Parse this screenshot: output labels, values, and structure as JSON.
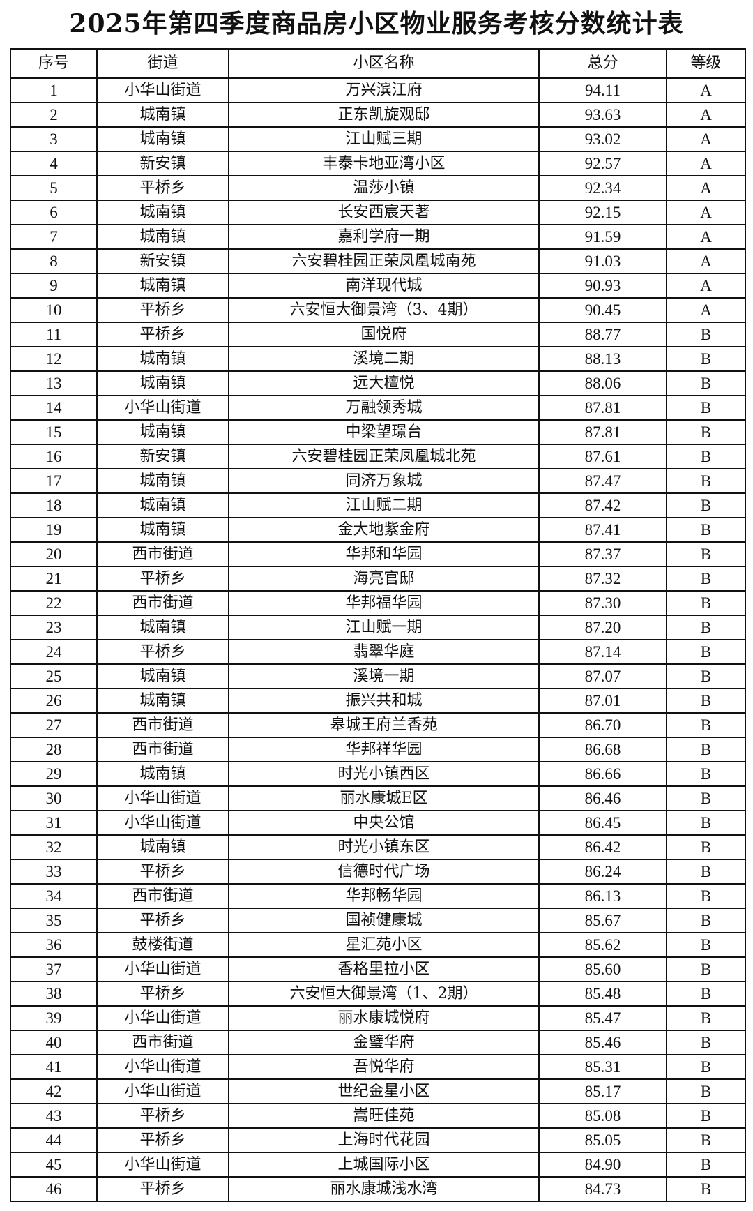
{
  "title": "2025年第四季度商品房小区物业服务考核分数统计表",
  "headers": [
    "序号",
    "街道",
    "小区名称",
    "总分",
    "等级"
  ],
  "rows": [
    [
      "1",
      "小华山街道",
      "万兴滨江府",
      "94.11",
      "A"
    ],
    [
      "2",
      "城南镇",
      "正东凯旋观邸",
      "93.63",
      "A"
    ],
    [
      "3",
      "城南镇",
      "江山赋三期",
      "93.02",
      "A"
    ],
    [
      "4",
      "新安镇",
      "丰泰卡地亚湾小区",
      "92.57",
      "A"
    ],
    [
      "5",
      "平桥乡",
      "温莎小镇",
      "92.34",
      "A"
    ],
    [
      "6",
      "城南镇",
      "长安西宸天著",
      "92.15",
      "A"
    ],
    [
      "7",
      "城南镇",
      "嘉利学府一期",
      "91.59",
      "A"
    ],
    [
      "8",
      "新安镇",
      "六安碧桂园正荣凤凰城南苑",
      "91.03",
      "A"
    ],
    [
      "9",
      "城南镇",
      "南洋现代城",
      "90.93",
      "A"
    ],
    [
      "10",
      "平桥乡",
      "六安恒大御景湾（3、4期）",
      "90.45",
      "A"
    ],
    [
      "11",
      "平桥乡",
      "国悦府",
      "88.77",
      "B"
    ],
    [
      "12",
      "城南镇",
      "溪境二期",
      "88.13",
      "B"
    ],
    [
      "13",
      "城南镇",
      "远大檀悦",
      "88.06",
      "B"
    ],
    [
      "14",
      "小华山街道",
      "万融领秀城",
      "87.81",
      "B"
    ],
    [
      "15",
      "城南镇",
      "中梁望璟台",
      "87.81",
      "B"
    ],
    [
      "16",
      "新安镇",
      "六安碧桂园正荣凤凰城北苑",
      "87.61",
      "B"
    ],
    [
      "17",
      "城南镇",
      "同济万象城",
      "87.47",
      "B"
    ],
    [
      "18",
      "城南镇",
      "江山赋二期",
      "87.42",
      "B"
    ],
    [
      "19",
      "城南镇",
      "金大地紫金府",
      "87.41",
      "B"
    ],
    [
      "20",
      "西市街道",
      "华邦和华园",
      "87.37",
      "B"
    ],
    [
      "21",
      "平桥乡",
      "海亮官邸",
      "87.32",
      "B"
    ],
    [
      "22",
      "西市街道",
      "华邦福华园",
      "87.30",
      "B"
    ],
    [
      "23",
      "城南镇",
      "江山赋一期",
      "87.20",
      "B"
    ],
    [
      "24",
      "平桥乡",
      "翡翠华庭",
      "87.14",
      "B"
    ],
    [
      "25",
      "城南镇",
      "溪境一期",
      "87.07",
      "B"
    ],
    [
      "26",
      "城南镇",
      "振兴共和城",
      "87.01",
      "B"
    ],
    [
      "27",
      "西市街道",
      "皋城王府兰香苑",
      "86.70",
      "B"
    ],
    [
      "28",
      "西市街道",
      "华邦祥华园",
      "86.68",
      "B"
    ],
    [
      "29",
      "城南镇",
      "时光小镇西区",
      "86.66",
      "B"
    ],
    [
      "30",
      "小华山街道",
      "丽水康城E区",
      "86.46",
      "B"
    ],
    [
      "31",
      "小华山街道",
      "中央公馆",
      "86.45",
      "B"
    ],
    [
      "32",
      "城南镇",
      "时光小镇东区",
      "86.42",
      "B"
    ],
    [
      "33",
      "平桥乡",
      "信德时代广场",
      "86.24",
      "B"
    ],
    [
      "34",
      "西市街道",
      "华邦畅华园",
      "86.13",
      "B"
    ],
    [
      "35",
      "平桥乡",
      "国祯健康城",
      "85.67",
      "B"
    ],
    [
      "36",
      "鼓楼街道",
      "星汇苑小区",
      "85.62",
      "B"
    ],
    [
      "37",
      "小华山街道",
      "香格里拉小区",
      "85.60",
      "B"
    ],
    [
      "38",
      "平桥乡",
      "六安恒大御景湾（1、2期）",
      "85.48",
      "B"
    ],
    [
      "39",
      "小华山街道",
      "丽水康城悦府",
      "85.47",
      "B"
    ],
    [
      "40",
      "西市街道",
      "金璧华府",
      "85.46",
      "B"
    ],
    [
      "41",
      "小华山街道",
      "吾悦华府",
      "85.31",
      "B"
    ],
    [
      "42",
      "小华山街道",
      "世纪金星小区",
      "85.17",
      "B"
    ],
    [
      "43",
      "平桥乡",
      "嵩旺佳苑",
      "85.08",
      "B"
    ],
    [
      "44",
      "平桥乡",
      "上海时代花园",
      "85.05",
      "B"
    ],
    [
      "45",
      "小华山街道",
      "上城国际小区",
      "84.90",
      "B"
    ],
    [
      "46",
      "平桥乡",
      "丽水康城浅水湾",
      "84.73",
      "B"
    ]
  ]
}
